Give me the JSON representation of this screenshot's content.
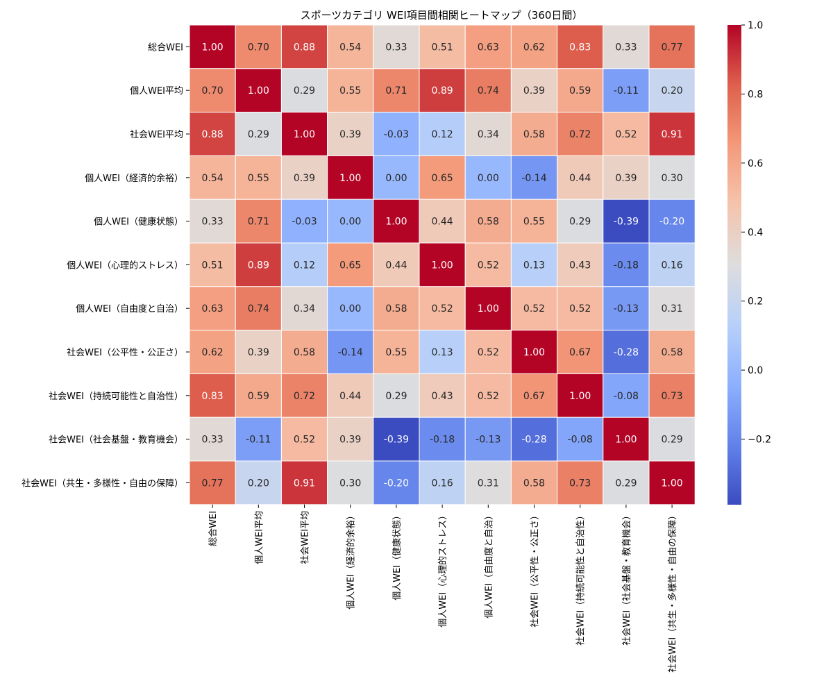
{
  "chart_data": {
    "type": "heatmap",
    "title": "スポーツカテゴリ WEI項目間相関ヒートマップ（360日間）",
    "xlabel": "",
    "ylabel": "",
    "labels": [
      "総合WEI",
      "個人WEI平均",
      "社会WEI平均",
      "個人WEI（経済的余裕）",
      "個人WEI（健康状態）",
      "個人WEI（心理的ストレス）",
      "個人WEI（自由度と自治）",
      "社会WEI（公平性・公正さ）",
      "社会WEI（持続可能性と自治性）",
      "社会WEI（社会基盤・教育機会）",
      "社会WEI（共生・多様性・自由の保障）"
    ],
    "matrix": [
      [
        1.0,
        0.7,
        0.88,
        0.54,
        0.33,
        0.51,
        0.63,
        0.62,
        0.83,
        0.33,
        0.77
      ],
      [
        0.7,
        1.0,
        0.29,
        0.55,
        0.71,
        0.89,
        0.74,
        0.39,
        0.59,
        -0.11,
        0.2
      ],
      [
        0.88,
        0.29,
        1.0,
        0.39,
        -0.03,
        0.12,
        0.34,
        0.58,
        0.72,
        0.52,
        0.91
      ],
      [
        0.54,
        0.55,
        0.39,
        1.0,
        0.0,
        0.65,
        0.0,
        -0.14,
        0.44,
        0.39,
        0.3
      ],
      [
        0.33,
        0.71,
        -0.03,
        0.0,
        1.0,
        0.44,
        0.58,
        0.55,
        0.29,
        -0.39,
        -0.2
      ],
      [
        0.51,
        0.89,
        0.12,
        0.65,
        0.44,
        1.0,
        0.52,
        0.13,
        0.43,
        -0.18,
        0.16
      ],
      [
        0.63,
        0.74,
        0.34,
        0.0,
        0.58,
        0.52,
        1.0,
        0.52,
        0.52,
        -0.13,
        0.31
      ],
      [
        0.62,
        0.39,
        0.58,
        -0.14,
        0.55,
        0.13,
        0.52,
        1.0,
        0.67,
        -0.28,
        0.58
      ],
      [
        0.83,
        0.59,
        0.72,
        0.44,
        0.29,
        0.43,
        0.52,
        0.67,
        1.0,
        -0.08,
        0.73
      ],
      [
        0.33,
        -0.11,
        0.52,
        0.39,
        -0.39,
        -0.18,
        -0.13,
        -0.28,
        -0.08,
        1.0,
        0.29
      ],
      [
        0.77,
        0.2,
        0.91,
        0.3,
        -0.2,
        0.16,
        0.31,
        0.58,
        0.73,
        0.29,
        1.0
      ]
    ],
    "color_range": [
      -0.39,
      1.0
    ],
    "colormap": "coolwarm",
    "colorbar_ticks": [
      -0.2,
      0.0,
      0.2,
      0.4,
      0.6,
      0.8,
      1.0
    ],
    "colorbar_tick_labels": [
      "−0.2",
      "0.0",
      "0.2",
      "0.4",
      "0.6",
      "0.8",
      "1.0"
    ],
    "value_format": "2 decimals"
  }
}
